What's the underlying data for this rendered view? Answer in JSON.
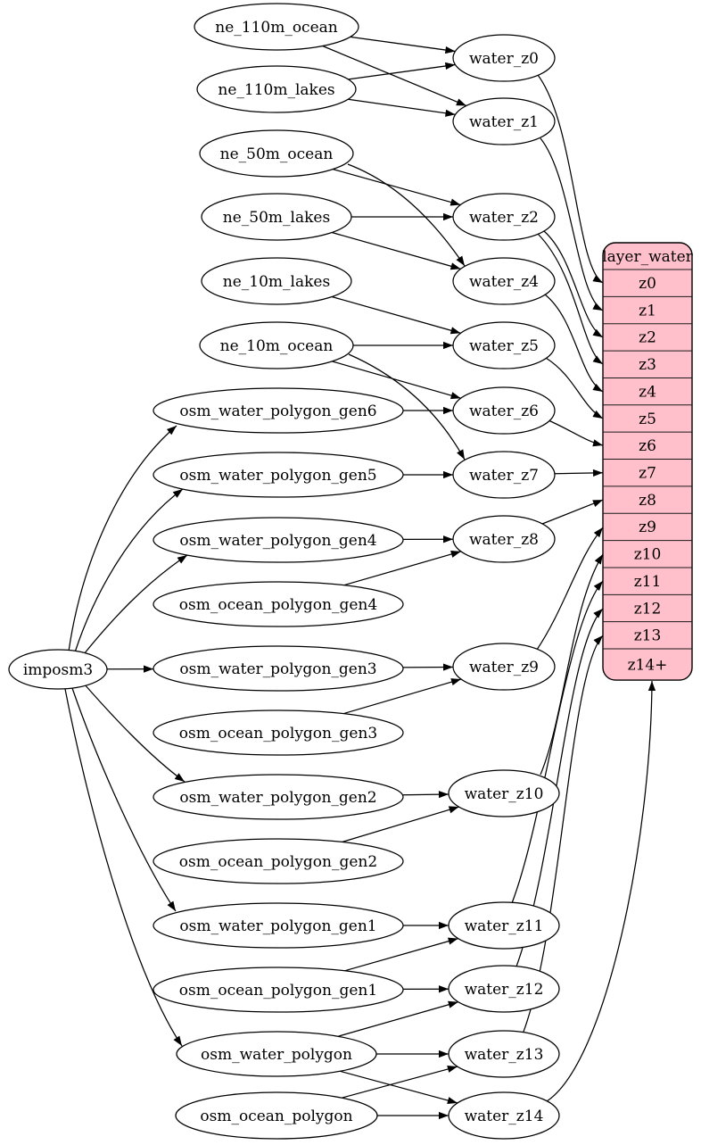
{
  "diagram": {
    "background_color": "#ffffff",
    "node_fill": "#ffffff",
    "node_stroke": "#000000",
    "edge_color": "#000000",
    "record_fill": "#ffc0cb"
  },
  "nodes": [
    {
      "id": "imposm3",
      "label": "imposm3",
      "kind": "program"
    },
    {
      "id": "ne_110m_ocean",
      "label": "ne_110m_ocean",
      "kind": "source-table"
    },
    {
      "id": "ne_110m_lakes",
      "label": "ne_110m_lakes",
      "kind": "source-table"
    },
    {
      "id": "ne_50m_ocean",
      "label": "ne_50m_ocean",
      "kind": "source-table"
    },
    {
      "id": "ne_50m_lakes",
      "label": "ne_50m_lakes",
      "kind": "source-table"
    },
    {
      "id": "ne_10m_lakes",
      "label": "ne_10m_lakes",
      "kind": "source-table"
    },
    {
      "id": "ne_10m_ocean",
      "label": "ne_10m_ocean",
      "kind": "source-table"
    },
    {
      "id": "osm_water_polygon_gen6",
      "label": "osm_water_polygon_gen6",
      "kind": "source-table"
    },
    {
      "id": "osm_water_polygon_gen5",
      "label": "osm_water_polygon_gen5",
      "kind": "source-table"
    },
    {
      "id": "osm_water_polygon_gen4",
      "label": "osm_water_polygon_gen4",
      "kind": "source-table"
    },
    {
      "id": "osm_ocean_polygon_gen4",
      "label": "osm_ocean_polygon_gen4",
      "kind": "source-table"
    },
    {
      "id": "osm_water_polygon_gen3",
      "label": "osm_water_polygon_gen3",
      "kind": "source-table"
    },
    {
      "id": "osm_ocean_polygon_gen3",
      "label": "osm_ocean_polygon_gen3",
      "kind": "source-table"
    },
    {
      "id": "osm_water_polygon_gen2",
      "label": "osm_water_polygon_gen2",
      "kind": "source-table"
    },
    {
      "id": "osm_ocean_polygon_gen2",
      "label": "osm_ocean_polygon_gen2",
      "kind": "source-table"
    },
    {
      "id": "osm_water_polygon_gen1",
      "label": "osm_water_polygon_gen1",
      "kind": "source-table"
    },
    {
      "id": "osm_ocean_polygon_gen1",
      "label": "osm_ocean_polygon_gen1",
      "kind": "source-table"
    },
    {
      "id": "osm_water_polygon",
      "label": "osm_water_polygon",
      "kind": "source-table"
    },
    {
      "id": "osm_ocean_polygon",
      "label": "osm_ocean_polygon",
      "kind": "source-table"
    },
    {
      "id": "water_z0",
      "label": "water_z0",
      "kind": "intermediate"
    },
    {
      "id": "water_z1",
      "label": "water_z1",
      "kind": "intermediate"
    },
    {
      "id": "water_z2",
      "label": "water_z2",
      "kind": "intermediate"
    },
    {
      "id": "water_z4",
      "label": "water_z4",
      "kind": "intermediate"
    },
    {
      "id": "water_z5",
      "label": "water_z5",
      "kind": "intermediate"
    },
    {
      "id": "water_z6",
      "label": "water_z6",
      "kind": "intermediate"
    },
    {
      "id": "water_z7",
      "label": "water_z7",
      "kind": "intermediate"
    },
    {
      "id": "water_z8",
      "label": "water_z8",
      "kind": "intermediate"
    },
    {
      "id": "water_z9",
      "label": "water_z9",
      "kind": "intermediate"
    },
    {
      "id": "water_z10",
      "label": "water_z10",
      "kind": "intermediate"
    },
    {
      "id": "water_z11",
      "label": "water_z11",
      "kind": "intermediate"
    },
    {
      "id": "water_z12",
      "label": "water_z12",
      "kind": "intermediate"
    },
    {
      "id": "water_z13",
      "label": "water_z13",
      "kind": "intermediate"
    },
    {
      "id": "water_z14",
      "label": "water_z14",
      "kind": "intermediate"
    }
  ],
  "record": {
    "id": "layer_water",
    "title": "layer_water",
    "rows": [
      "z0",
      "z1",
      "z2",
      "z3",
      "z4",
      "z5",
      "z6",
      "z7",
      "z8",
      "z9",
      "z10",
      "z11",
      "z12",
      "z13",
      "z14+"
    ]
  },
  "edges": [
    {
      "from": "imposm3",
      "to": "osm_water_polygon_gen6"
    },
    {
      "from": "imposm3",
      "to": "osm_water_polygon_gen5"
    },
    {
      "from": "imposm3",
      "to": "osm_water_polygon_gen4"
    },
    {
      "from": "imposm3",
      "to": "osm_water_polygon_gen3"
    },
    {
      "from": "imposm3",
      "to": "osm_water_polygon_gen2"
    },
    {
      "from": "imposm3",
      "to": "osm_water_polygon_gen1"
    },
    {
      "from": "imposm3",
      "to": "osm_water_polygon"
    },
    {
      "from": "ne_110m_ocean",
      "to": "water_z0"
    },
    {
      "from": "ne_110m_ocean",
      "to": "water_z1"
    },
    {
      "from": "ne_110m_lakes",
      "to": "water_z0"
    },
    {
      "from": "ne_110m_lakes",
      "to": "water_z1"
    },
    {
      "from": "ne_50m_ocean",
      "to": "water_z2"
    },
    {
      "from": "ne_50m_ocean",
      "to": "water_z4"
    },
    {
      "from": "ne_50m_lakes",
      "to": "water_z2"
    },
    {
      "from": "ne_50m_lakes",
      "to": "water_z4"
    },
    {
      "from": "ne_10m_lakes",
      "to": "water_z5"
    },
    {
      "from": "ne_10m_ocean",
      "to": "water_z5"
    },
    {
      "from": "ne_10m_ocean",
      "to": "water_z6"
    },
    {
      "from": "ne_10m_ocean",
      "to": "water_z7"
    },
    {
      "from": "osm_water_polygon_gen6",
      "to": "water_z6"
    },
    {
      "from": "osm_water_polygon_gen5",
      "to": "water_z7"
    },
    {
      "from": "osm_water_polygon_gen4",
      "to": "water_z8"
    },
    {
      "from": "osm_ocean_polygon_gen4",
      "to": "water_z8"
    },
    {
      "from": "osm_water_polygon_gen3",
      "to": "water_z9"
    },
    {
      "from": "osm_ocean_polygon_gen3",
      "to": "water_z9"
    },
    {
      "from": "osm_water_polygon_gen2",
      "to": "water_z10"
    },
    {
      "from": "osm_ocean_polygon_gen2",
      "to": "water_z10"
    },
    {
      "from": "osm_water_polygon_gen1",
      "to": "water_z11"
    },
    {
      "from": "osm_ocean_polygon_gen1",
      "to": "water_z11"
    },
    {
      "from": "osm_ocean_polygon_gen1",
      "to": "water_z12"
    },
    {
      "from": "osm_water_polygon",
      "to": "water_z12"
    },
    {
      "from": "osm_water_polygon",
      "to": "water_z13"
    },
    {
      "from": "osm_water_polygon",
      "to": "water_z14"
    },
    {
      "from": "osm_ocean_polygon",
      "to": "water_z13"
    },
    {
      "from": "osm_ocean_polygon",
      "to": "water_z14"
    },
    {
      "from": "water_z0",
      "to": "layer_water",
      "row": "z0"
    },
    {
      "from": "water_z1",
      "to": "layer_water",
      "row": "z1"
    },
    {
      "from": "water_z2",
      "to": "layer_water",
      "row": "z2"
    },
    {
      "from": "water_z2",
      "to": "layer_water",
      "row": "z3"
    },
    {
      "from": "water_z4",
      "to": "layer_water",
      "row": "z4"
    },
    {
      "from": "water_z5",
      "to": "layer_water",
      "row": "z5"
    },
    {
      "from": "water_z6",
      "to": "layer_water",
      "row": "z6"
    },
    {
      "from": "water_z7",
      "to": "layer_water",
      "row": "z7"
    },
    {
      "from": "water_z8",
      "to": "layer_water",
      "row": "z8"
    },
    {
      "from": "water_z9",
      "to": "layer_water",
      "row": "z9"
    },
    {
      "from": "water_z10",
      "to": "layer_water",
      "row": "z10"
    },
    {
      "from": "water_z11",
      "to": "layer_water",
      "row": "z11"
    },
    {
      "from": "water_z12",
      "to": "layer_water",
      "row": "z12"
    },
    {
      "from": "water_z13",
      "to": "layer_water",
      "row": "z13"
    },
    {
      "from": "water_z14",
      "to": "layer_water",
      "row": "z14+"
    }
  ]
}
